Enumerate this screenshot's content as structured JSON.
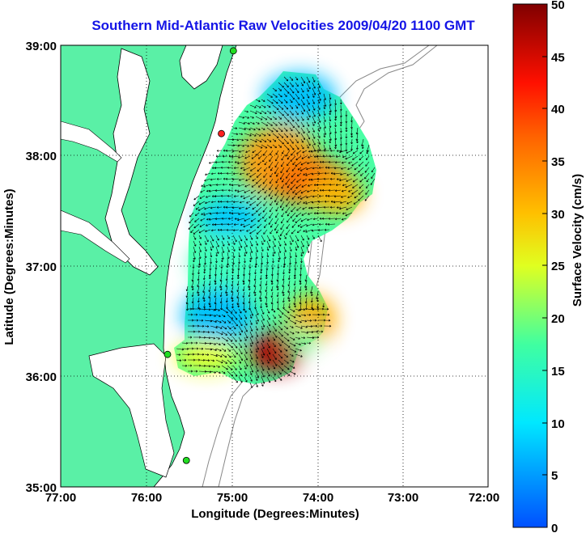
{
  "title": "Southern Mid-Atlantic Raw Velocities 2009/04/20 1100 GMT",
  "xaxis": {
    "label": "Longitude (Degrees:Minutes)",
    "ticks": [
      "77:00",
      "76:00",
      "75:00",
      "74:00",
      "73:00",
      "72:00"
    ],
    "range": [
      -77,
      -72
    ]
  },
  "yaxis": {
    "label": "Latitude (Degrees:Minutes)",
    "ticks": [
      "39:00",
      "38:00",
      "37:00",
      "36:00",
      "35:00"
    ],
    "range": [
      35,
      39
    ]
  },
  "colorbar": {
    "label": "Surface Velocity (cm/s)",
    "ticks": [
      "50",
      "45",
      "40",
      "35",
      "30",
      "25",
      "20",
      "15",
      "10",
      "5",
      "0"
    ],
    "range": [
      0,
      50
    ]
  },
  "colors": {
    "land": "#5af0a6",
    "water": "#ffffff",
    "title": "#1414e6",
    "station": "#22dd22",
    "station_alt": "#ff2020"
  },
  "stations": [
    {
      "lon": -74.98,
      "lat": 38.95,
      "type": "green"
    },
    {
      "lon": -75.12,
      "lat": 38.2,
      "type": "red"
    },
    {
      "lon": -75.75,
      "lat": 36.2,
      "type": "green"
    },
    {
      "lon": -75.53,
      "lat": 35.24,
      "type": "green"
    }
  ]
}
